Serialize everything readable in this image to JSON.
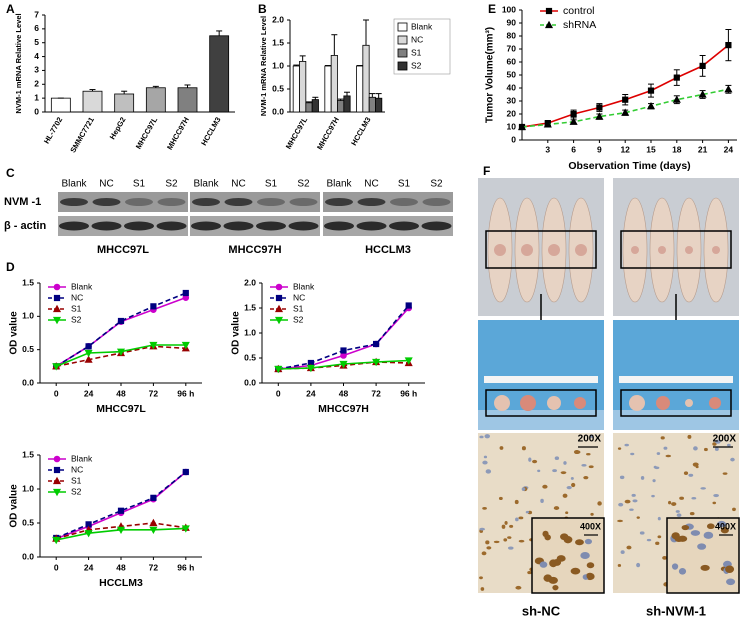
{
  "chart_data": [
    {
      "type": "bar",
      "ylabel": "NVM-1 mRNA Relative Level",
      "categories": [
        "HL-7702",
        "SMMC7721",
        "HepG2",
        "MHCC97L",
        "MHCC97H",
        "HCCLM3"
      ],
      "values": [
        1.0,
        1.5,
        1.3,
        1.75,
        1.75,
        5.5
      ],
      "errors": [
        0,
        0.12,
        0.2,
        0.1,
        0.2,
        0.35
      ],
      "colors": [
        "#ffffff",
        "#d9d9d9",
        "#bfbfbf",
        "#a6a6a6",
        "#808080",
        "#404040"
      ],
      "ylim": [
        0,
        7
      ],
      "yticks": [
        0,
        1,
        2,
        3,
        4,
        5,
        6,
        7
      ]
    },
    {
      "type": "bar",
      "ylabel": "NVM-1 mRNA Relative Level",
      "categories": [
        "MHCC97L",
        "MHCC97H",
        "HCCLM3"
      ],
      "series": [
        {
          "name": "Blank",
          "color": "#ffffff",
          "values": [
            1.0,
            1.0,
            1.0
          ],
          "errors": [
            0.02,
            0.01,
            0.01
          ]
        },
        {
          "name": "NC",
          "color": "#d9d9d9",
          "values": [
            1.1,
            1.23,
            1.45
          ],
          "errors": [
            0.12,
            0.45,
            0.55
          ]
        },
        {
          "name": "S1",
          "color": "#808080",
          "values": [
            0.2,
            0.25,
            0.32
          ],
          "errors": [
            0.02,
            0.03,
            0.08
          ]
        },
        {
          "name": "S2",
          "color": "#333333",
          "values": [
            0.27,
            0.35,
            0.3
          ],
          "errors": [
            0.05,
            0.08,
            0.1
          ]
        }
      ],
      "ylim": [
        0,
        2
      ],
      "yticks": [
        {
          "value": 0,
          "label": "0.0"
        },
        {
          "value": 0.5,
          "label": "0.5"
        },
        {
          "value": 1,
          "label": "1.0"
        },
        {
          "value": 1.5,
          "label": "1.5"
        },
        {
          "value": 2,
          "label": "2.0"
        }
      ]
    },
    {
      "type": "line",
      "xlabel": "Observation Time (days)",
      "ylabel": "Tumor Volume(mm³)",
      "x": [
        0,
        3,
        6,
        9,
        12,
        15,
        18,
        21,
        24
      ],
      "series": [
        {
          "name": "control",
          "color": "#dd0000",
          "marker": "square",
          "marker_color": "#000000",
          "dash": false,
          "values": [
            10,
            13,
            20,
            25,
            31,
            38,
            48,
            57,
            73
          ],
          "errors": [
            1,
            1.5,
            3,
            3,
            4,
            5,
            6,
            8,
            12
          ]
        },
        {
          "name": "shRNA",
          "color": "#33cc33",
          "marker": "triangle",
          "marker_color": "#000000",
          "dash": true,
          "values": [
            10,
            12,
            14,
            18,
            21,
            26,
            31,
            35,
            39
          ],
          "errors": [
            1,
            1,
            1.5,
            2,
            2,
            2,
            3,
            3,
            3
          ]
        }
      ],
      "xlim": [
        0,
        25
      ],
      "xticks": [
        3,
        6,
        9,
        12,
        15,
        18,
        21,
        24
      ],
      "ylim": [
        0,
        100
      ],
      "yticks": [
        0,
        10,
        20,
        30,
        40,
        50,
        60,
        70,
        80,
        90,
        100
      ]
    },
    {
      "type": "line",
      "xlabel": "MHCC97L",
      "ylabel": "OD value",
      "categories": [
        "0",
        "24",
        "48",
        "72",
        "96 h"
      ],
      "series": [
        {
          "name": "Blank",
          "color": "#cc00cc",
          "marker": "circle",
          "dash": false,
          "values": [
            0.25,
            0.55,
            0.92,
            1.1,
            1.28
          ]
        },
        {
          "name": "NC",
          "color": "#000080",
          "marker": "square",
          "dash": true,
          "values": [
            0.25,
            0.55,
            0.93,
            1.15,
            1.35
          ]
        },
        {
          "name": "S1",
          "color": "#990000",
          "marker": "triangle",
          "dash": true,
          "values": [
            0.25,
            0.35,
            0.45,
            0.55,
            0.52
          ]
        },
        {
          "name": "S2",
          "color": "#00cc00",
          "marker": "triangle-down",
          "dash": false,
          "values": [
            0.25,
            0.45,
            0.47,
            0.57,
            0.57
          ]
        }
      ],
      "ylim": [
        0,
        1.5
      ],
      "yticks": [
        {
          "value": 0,
          "label": "0.0"
        },
        {
          "value": 0.5,
          "label": "0.5"
        },
        {
          "value": 1,
          "label": "1.0"
        },
        {
          "value": 1.5,
          "label": "1.5"
        }
      ]
    },
    {
      "type": "line",
      "xlabel": "MHCC97H",
      "ylabel": "OD value",
      "categories": [
        "0",
        "24",
        "48",
        "72",
        "96 h"
      ],
      "series": [
        {
          "name": "Blank",
          "color": "#cc00cc",
          "marker": "circle",
          "dash": false,
          "values": [
            0.28,
            0.35,
            0.55,
            0.78,
            1.5
          ]
        },
        {
          "name": "NC",
          "color": "#000080",
          "marker": "square",
          "dash": true,
          "values": [
            0.28,
            0.4,
            0.65,
            0.78,
            1.55
          ]
        },
        {
          "name": "S1",
          "color": "#990000",
          "marker": "triangle",
          "dash": true,
          "values": [
            0.28,
            0.3,
            0.35,
            0.42,
            0.4
          ]
        },
        {
          "name": "S2",
          "color": "#00cc00",
          "marker": "triangle-down",
          "dash": false,
          "values": [
            0.28,
            0.3,
            0.38,
            0.42,
            0.45
          ]
        }
      ],
      "ylim": [
        0,
        2
      ],
      "yticks": [
        {
          "value": 0,
          "label": "0.0"
        },
        {
          "value": 0.5,
          "label": "0.5"
        },
        {
          "value": 1,
          "label": "1.0"
        },
        {
          "value": 1.5,
          "label": "1.5"
        },
        {
          "value": 2,
          "label": "2.0"
        }
      ]
    },
    {
      "type": "line",
      "xlabel": "HCCLM3",
      "ylabel": "OD value",
      "categories": [
        "0",
        "24",
        "48",
        "72",
        "96 h"
      ],
      "series": [
        {
          "name": "Blank",
          "color": "#cc00cc",
          "marker": "circle",
          "dash": false,
          "values": [
            0.27,
            0.45,
            0.65,
            0.85,
            1.25
          ]
        },
        {
          "name": "NC",
          "color": "#000080",
          "marker": "square",
          "dash": true,
          "values": [
            0.28,
            0.48,
            0.68,
            0.87,
            1.25
          ]
        },
        {
          "name": "S1",
          "color": "#990000",
          "marker": "triangle",
          "dash": true,
          "values": [
            0.27,
            0.4,
            0.45,
            0.5,
            0.43
          ]
        },
        {
          "name": "S2",
          "color": "#00cc00",
          "marker": "triangle-down",
          "dash": false,
          "values": [
            0.25,
            0.35,
            0.4,
            0.4,
            0.42
          ]
        }
      ],
      "ylim": [
        0,
        1.5
      ],
      "yticks": [
        {
          "value": 0,
          "label": "0.0"
        },
        {
          "value": 0.5,
          "label": "0.5"
        },
        {
          "value": 1,
          "label": "1.0"
        },
        {
          "value": 1.5,
          "label": "1.5"
        }
      ]
    }
  ],
  "panel_labels": [
    "A",
    "B",
    "C",
    "D",
    "E",
    "F"
  ],
  "blot": {
    "rows": [
      "NVM -1",
      "β - actin"
    ],
    "lanes": [
      "Blank",
      "NC",
      "S1",
      "S2"
    ],
    "groups": [
      "MHCC97L",
      "MHCC97H",
      "HCCLM3"
    ]
  },
  "photos": {
    "magnifications": [
      "200X",
      "400X"
    ],
    "captions": [
      "sh-NC",
      "sh-NVM-1"
    ]
  }
}
